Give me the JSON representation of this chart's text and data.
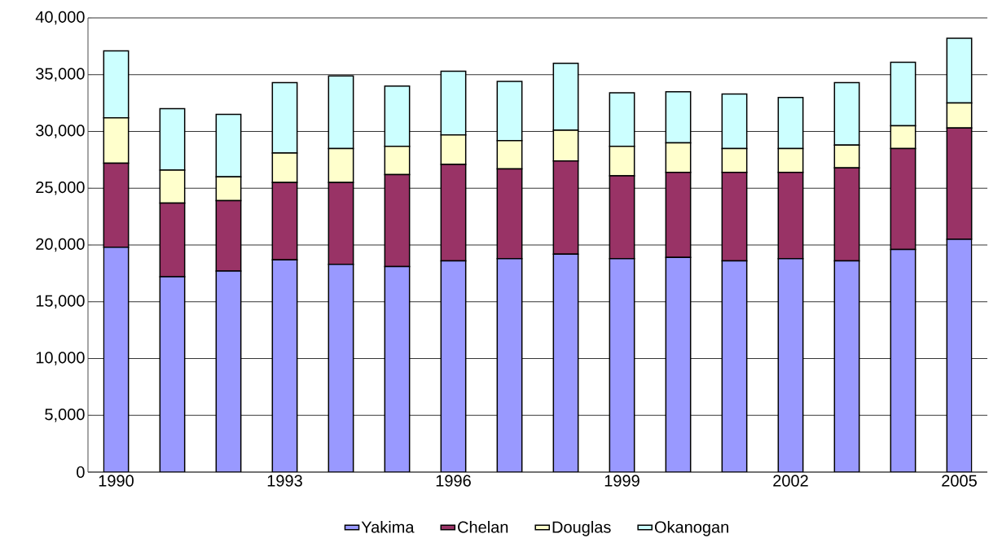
{
  "chart_data": {
    "type": "bar",
    "stacked": true,
    "grid": "y",
    "legend": "bottom",
    "categories": [
      "1990",
      null,
      null,
      "1993",
      null,
      null,
      "1996",
      null,
      null,
      "1999",
      null,
      null,
      "2002",
      null,
      null,
      "2005"
    ],
    "ylim": [
      0,
      40000
    ],
    "yticks": [
      {
        "value": 0,
        "label": "0"
      },
      {
        "value": 5000,
        "label": "5,000"
      },
      {
        "value": 10000,
        "label": "10,000"
      },
      {
        "value": 15000,
        "label": "15,000"
      },
      {
        "value": 20000,
        "label": "20,000"
      },
      {
        "value": 25000,
        "label": "25,000"
      },
      {
        "value": 30000,
        "label": "30,000"
      },
      {
        "value": 35000,
        "label": "35,000"
      },
      {
        "value": 40000,
        "label": "40,000"
      }
    ],
    "series": [
      {
        "name": "Yakima",
        "color": "#9999ff",
        "values": [
          19800,
          17200,
          17700,
          18700,
          18300,
          18100,
          18600,
          18800,
          19200,
          18800,
          18900,
          18600,
          18800,
          18600,
          19600,
          20500
        ]
      },
      {
        "name": "Chelan",
        "color": "#993366",
        "values": [
          7400,
          6500,
          6200,
          6800,
          7200,
          8100,
          8500,
          7900,
          8200,
          7300,
          7500,
          7800,
          7600,
          8200,
          8900,
          9800
        ]
      },
      {
        "name": "Douglas",
        "color": "#ffffcc",
        "values": [
          4000,
          2900,
          2100,
          2600,
          3000,
          2500,
          2600,
          2500,
          2700,
          2600,
          2600,
          2100,
          2100,
          2000,
          2000,
          2200
        ]
      },
      {
        "name": "Okanogan",
        "color": "#ccffff",
        "values": [
          5900,
          5400,
          5500,
          6200,
          6400,
          5300,
          5600,
          5200,
          5900,
          4700,
          4500,
          4800,
          4500,
          5500,
          5600,
          5700
        ]
      }
    ]
  }
}
